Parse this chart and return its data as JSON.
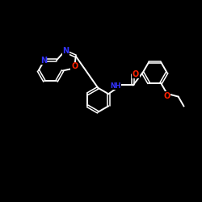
{
  "bg": "#000000",
  "wc": "#ffffff",
  "nc": "#3333ff",
  "oc": "#ff2200",
  "lw": 1.4,
  "lwd": 1.1,
  "doff": 0.055,
  "fs": 7.0,
  "xlim": [
    0,
    10
  ],
  "ylim": [
    0,
    10
  ],
  "figsize": [
    2.5,
    2.5
  ],
  "dpi": 100
}
